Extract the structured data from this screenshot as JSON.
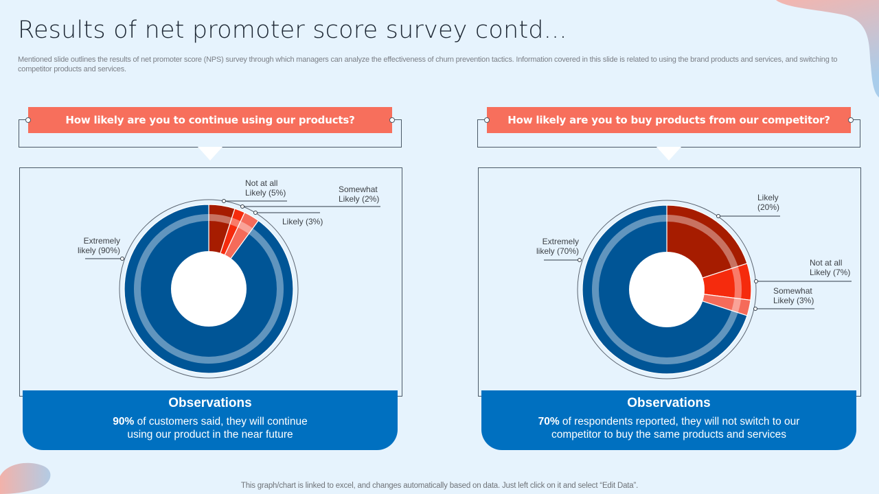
{
  "slide": {
    "title": "Results of net promoter score survey contd...",
    "subtitle": "Mentioned slide outlines the results of net promoter score (NPS) survey through which managers can analyze the effectiveness of churn prevention tactics. Information covered in this slide is related to using the brand products and services, and switching to competitor products and services.",
    "footer": "This graph/chart is linked to excel,  and changes automatically based on data. Just left click on it and select “Edit Data”."
  },
  "colors": {
    "background": "#E6F3FD",
    "question_bar": "#F76F5C",
    "observation_box": "#0070C0",
    "extremely_likely": "#005596",
    "not_at_all_likely": "#A61C00",
    "somewhat_likely_left": "#F52B0D",
    "likely_left": "#F56B5A",
    "likely_right": "#A61C00",
    "not_at_all_right": "#F52B0D",
    "somewhat_right": "#F56B5A"
  },
  "panels": [
    {
      "question": "How likely are you to continue using our products?",
      "observation_title": "Observations",
      "observation_highlight": "90%",
      "observation_line1": " of customers said, they will continue",
      "observation_line2": "using our product in the near future",
      "labels": {
        "extremely_1": "Extremely",
        "extremely_2": "likely (90%)",
        "notatall_1": "Not at all",
        "notatall_2": "Likely (5%)",
        "somewhat_1": "Somewhat",
        "somewhat_2": "Likely (2%)",
        "likely_1": "Likely (3%)"
      }
    },
    {
      "question": "How likely are you to buy products from our competitor?",
      "observation_title": "Observations",
      "observation_highlight": "70%",
      "observation_line1": " of respondents reported, they will not switch to our",
      "observation_line2": "competitor to buy the same products and services",
      "labels": {
        "extremely_1": "Extremely",
        "extremely_2": "likely (70%)",
        "likely_1": "Likely",
        "likely_2": "(20%)",
        "notatall_1": "Not at all",
        "notatall_2": "Likely (7%)",
        "somewhat_1": "Somewhat",
        "somewhat_2": "Likely (3%)"
      }
    }
  ],
  "chart_data": [
    {
      "type": "pie",
      "subtype": "donut",
      "title": "How likely are you to continue using our products?",
      "categories": [
        "Not at all Likely",
        "Somewhat Likely",
        "Likely",
        "Extremely likely"
      ],
      "values": [
        5,
        2,
        3,
        90
      ],
      "unit": "%",
      "colors": [
        "#A61C00",
        "#F52B0D",
        "#F56B5A",
        "#005596"
      ],
      "start_angle": "12 o'clock, clockwise"
    },
    {
      "type": "pie",
      "subtype": "donut",
      "title": "How likely are you to buy products from our competitor?",
      "categories": [
        "Likely",
        "Not at all Likely",
        "Somewhat Likely",
        "Extremely likely"
      ],
      "values": [
        20,
        7,
        3,
        70
      ],
      "unit": "%",
      "colors": [
        "#A61C00",
        "#F52B0D",
        "#F56B5A",
        "#005596"
      ],
      "start_angle": "12 o'clock, clockwise"
    }
  ]
}
